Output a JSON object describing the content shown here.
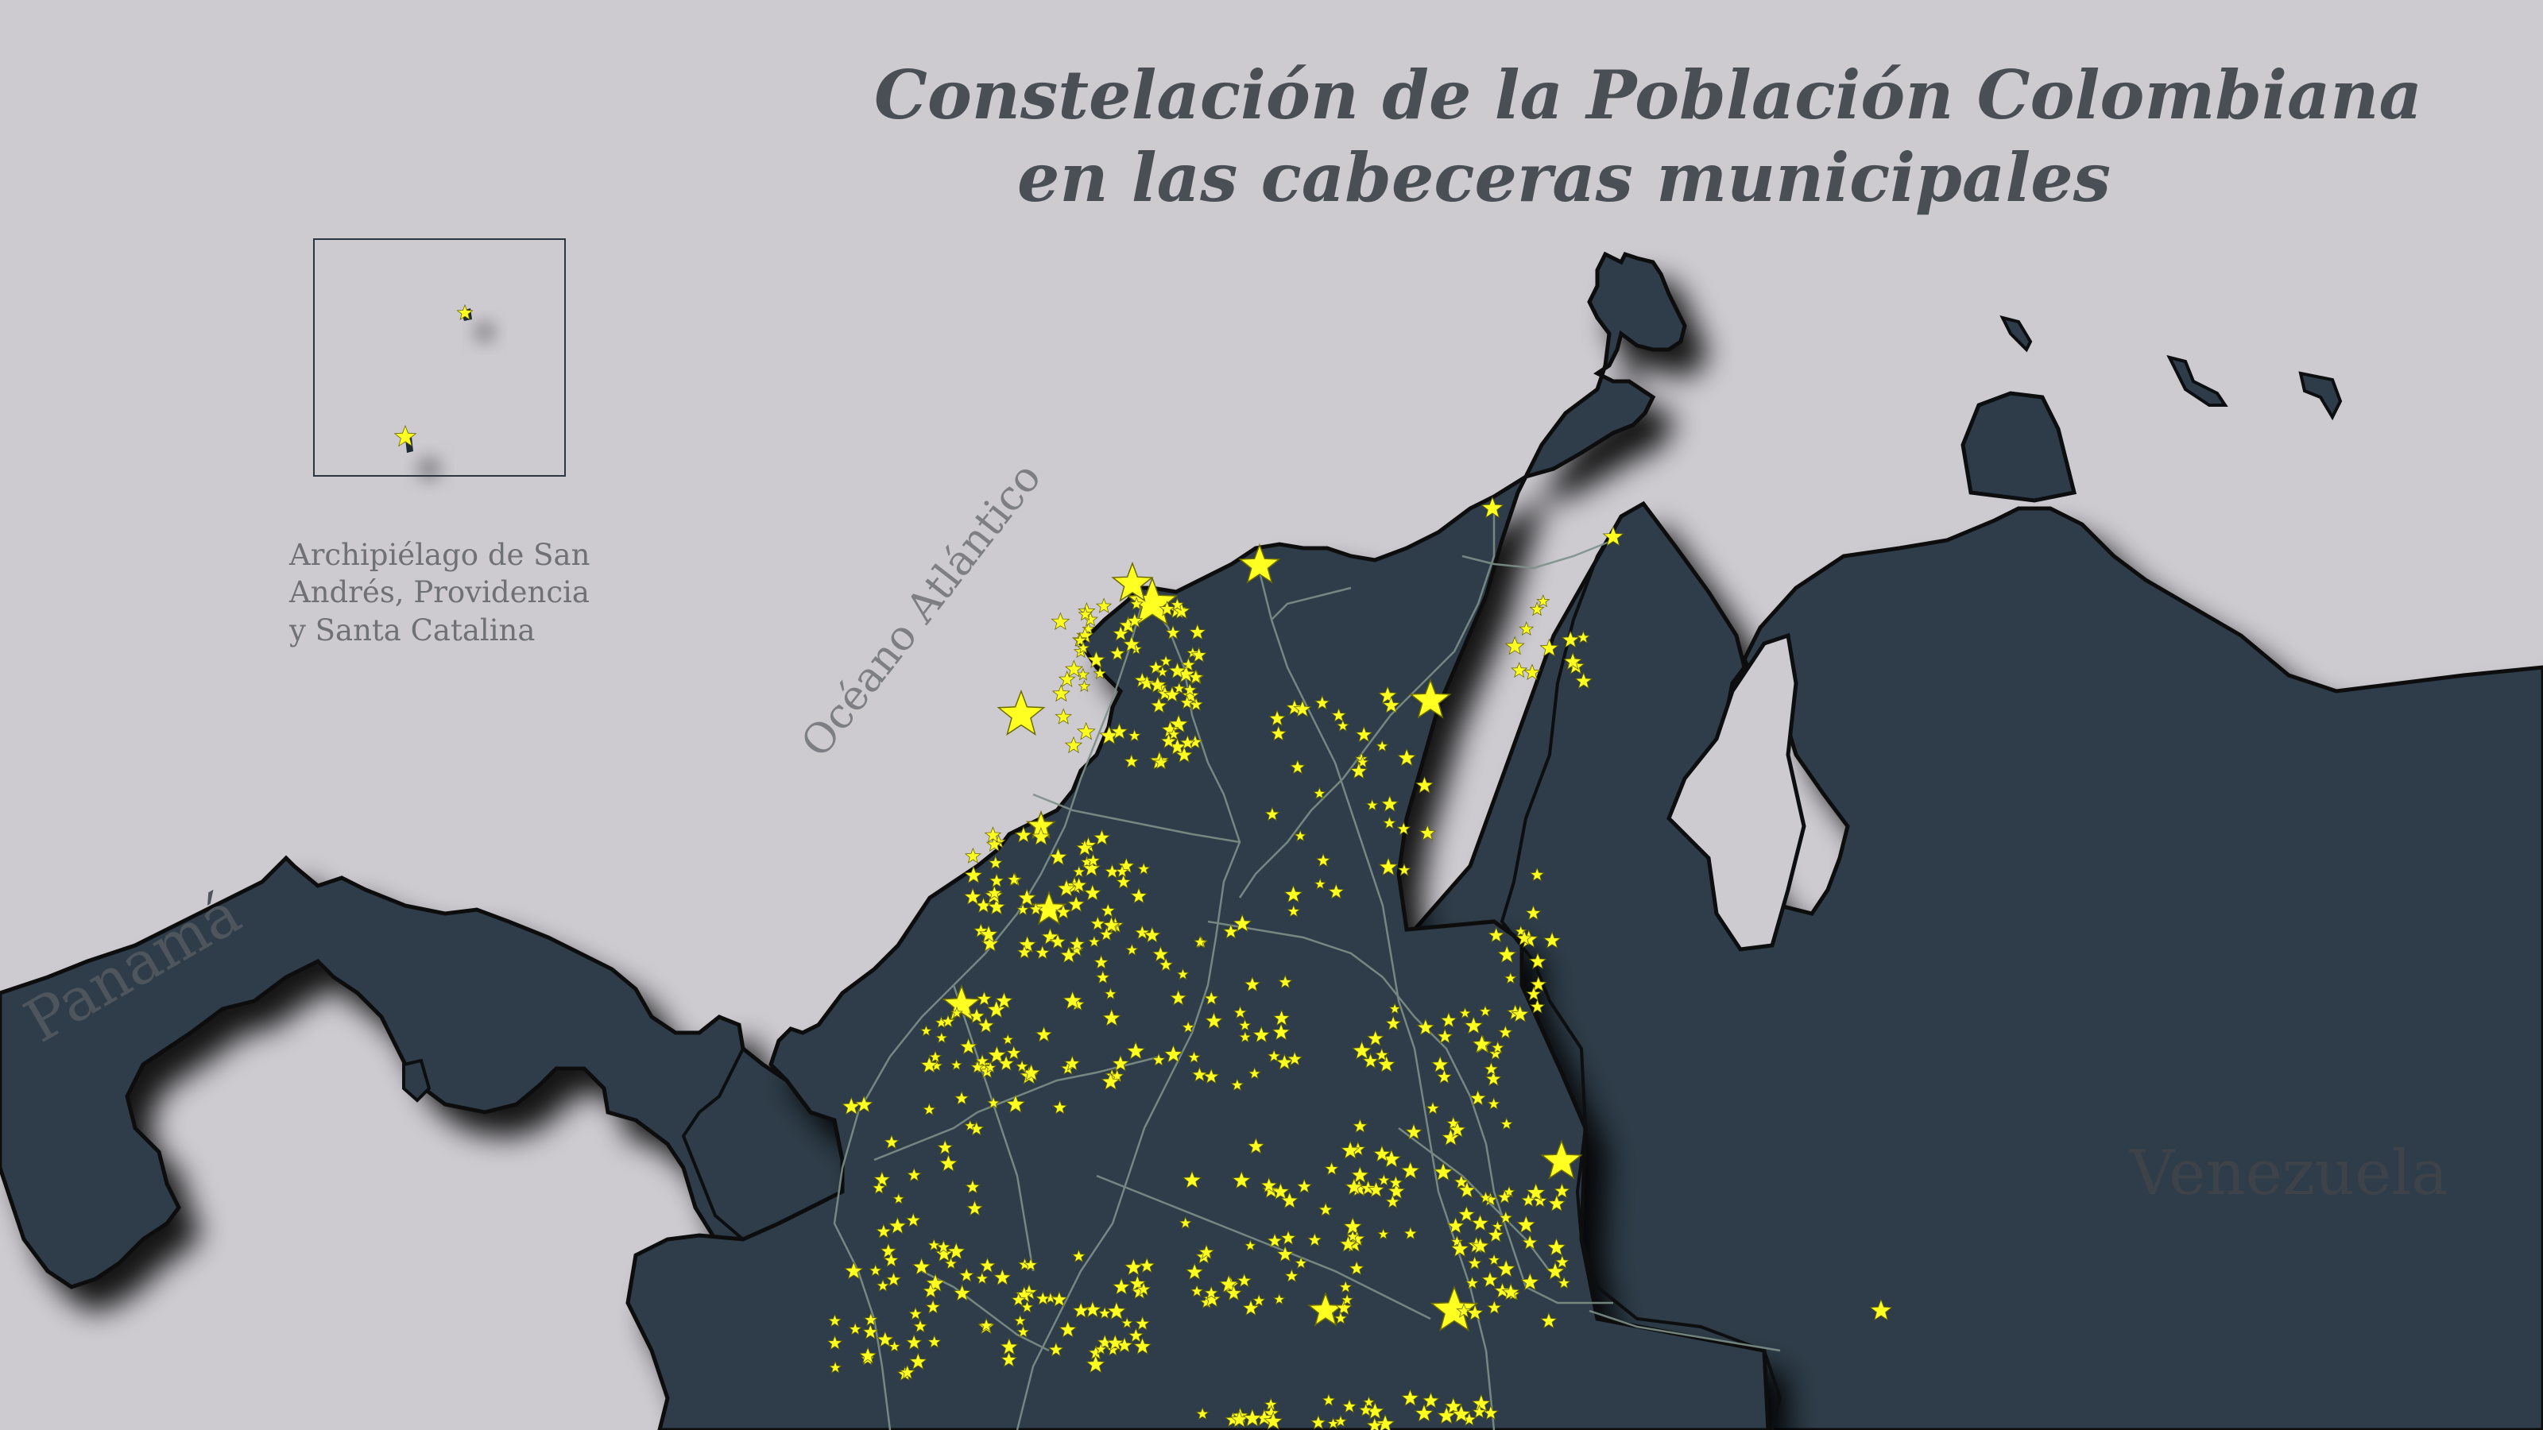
{
  "title": {
    "line1": "Constelación de la Población Colombiana",
    "line2": "en las cabeceras municipales"
  },
  "labels": {
    "panama": "Panamá",
    "venezuela": "Venezuela",
    "ocean": "Océano Atlántico"
  },
  "inset": {
    "caption_line1": "Archipiélago de San",
    "caption_line2": "Andrés, Providencia",
    "caption_line3": "y Santa Catalina"
  },
  "colors": {
    "sea": "#cdcbd0",
    "land": "#2d3c48",
    "border": "#0c0e10",
    "road": "#7d9088",
    "star": "#ffff22",
    "star_outline": "#6b6a00"
  }
}
